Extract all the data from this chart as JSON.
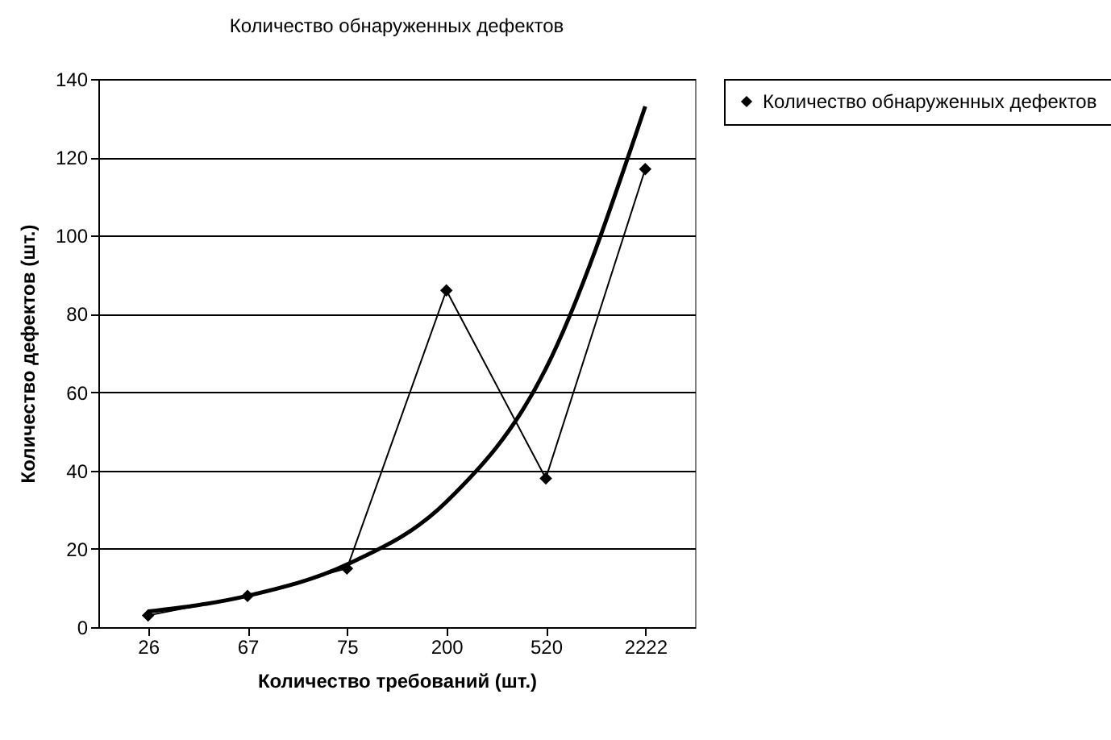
{
  "chart_data": {
    "type": "line",
    "title": "Количество обнаруженных дефектов",
    "xlabel": "Количество требований (шт.)",
    "ylabel": "Количество дефектов (шт.)",
    "categories": [
      "26",
      "67",
      "75",
      "200",
      "520",
      "2222"
    ],
    "series": [
      {
        "name": "Количество обнаруженных дефектов",
        "color": "#000000",
        "marker": "diamond",
        "values": [
          3,
          8,
          15,
          86,
          38,
          117
        ]
      },
      {
        "type": "line",
        "color": "#000000",
        "marker": "none",
        "values": [
          4,
          8,
          16,
          32,
          66,
          133
        ]
      }
    ],
    "ylim": [
      0,
      140
    ],
    "yticks": [
      0,
      20,
      40,
      60,
      80,
      100,
      120,
      140
    ],
    "grid": "y",
    "legend": "right"
  }
}
